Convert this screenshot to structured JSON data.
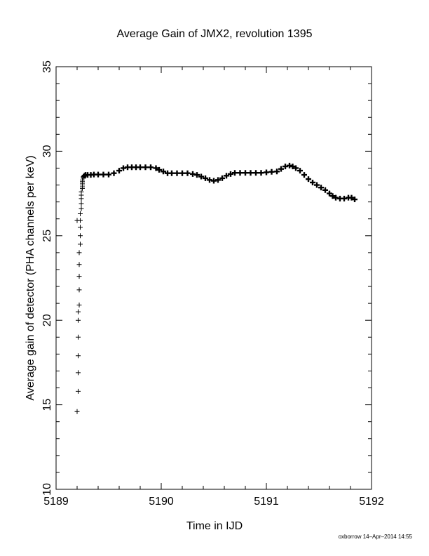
{
  "chart_data": {
    "type": "scatter",
    "title": "Average Gain of JMX2, revolution 1395",
    "xlabel": "Time in IJD",
    "ylabel": "Average gain of detector (PHA channels per keV)",
    "xlim": [
      5189,
      5192
    ],
    "ylim": [
      10,
      35
    ],
    "x_ticks": [
      5189,
      5190,
      5191,
      5192
    ],
    "y_ticks": [
      10,
      15,
      20,
      25,
      30,
      35
    ],
    "grid": false,
    "marker": "plus",
    "color": "#000000",
    "series": [
      {
        "name": "",
        "x": [
          5189.2,
          5189.2,
          5189.21,
          5189.21,
          5189.21,
          5189.21,
          5189.21,
          5189.21,
          5189.22,
          5189.22,
          5189.22,
          5189.22,
          5189.22,
          5189.23,
          5189.23,
          5189.23,
          5189.23,
          5189.23,
          5189.24,
          5189.24,
          5189.24,
          5189.24,
          5189.24,
          5189.25,
          5189.25,
          5189.25,
          5189.25,
          5189.25,
          5189.25,
          5189.26,
          5189.26,
          5189.26,
          5189.27,
          5189.28,
          5189.3,
          5189.33,
          5189.36,
          5189.4,
          5189.45,
          5189.5,
          5189.55,
          5189.6,
          5189.64,
          5189.68,
          5189.72,
          5189.76,
          5189.8,
          5189.85,
          5189.9,
          5189.95,
          5189.98,
          5190.02,
          5190.06,
          5190.1,
          5190.15,
          5190.2,
          5190.25,
          5190.3,
          5190.34,
          5190.38,
          5190.42,
          5190.46,
          5190.5,
          5190.54,
          5190.58,
          5190.62,
          5190.66,
          5190.7,
          5190.75,
          5190.8,
          5190.85,
          5190.9,
          5190.95,
          5191.0,
          5191.05,
          5191.1,
          5191.14,
          5191.18,
          5191.22,
          5191.25,
          5191.28,
          5191.32,
          5191.36,
          5191.4,
          5191.44,
          5191.48,
          5191.52,
          5191.56,
          5191.6,
          5191.63,
          5191.66,
          5191.7,
          5191.74,
          5191.78,
          5191.81,
          5191.84
        ],
        "y": [
          25.9,
          14.6,
          15.8,
          16.9,
          17.9,
          19.0,
          20.0,
          20.5,
          20.9,
          21.8,
          22.6,
          23.3,
          24.0,
          24.5,
          25.0,
          25.5,
          25.9,
          26.3,
          26.6,
          26.9,
          27.2,
          27.4,
          27.6,
          27.8,
          27.9,
          28.0,
          28.1,
          28.2,
          28.3,
          28.4,
          28.45,
          28.5,
          28.55,
          28.6,
          28.6,
          28.6,
          28.62,
          28.62,
          28.62,
          28.62,
          28.7,
          28.85,
          29.0,
          29.05,
          29.05,
          29.05,
          29.05,
          29.05,
          29.05,
          29.0,
          28.9,
          28.8,
          28.7,
          28.7,
          28.7,
          28.7,
          28.7,
          28.65,
          28.6,
          28.5,
          28.4,
          28.3,
          28.25,
          28.3,
          28.4,
          28.55,
          28.65,
          28.72,
          28.72,
          28.72,
          28.72,
          28.72,
          28.72,
          28.75,
          28.78,
          28.8,
          28.95,
          29.1,
          29.15,
          29.1,
          29.0,
          28.85,
          28.6,
          28.35,
          28.15,
          28.0,
          27.85,
          27.7,
          27.5,
          27.35,
          27.25,
          27.2,
          27.2,
          27.25,
          27.25,
          27.15
        ]
      }
    ],
    "footer": "oxborrow 14–Apr–2014 14:55"
  }
}
